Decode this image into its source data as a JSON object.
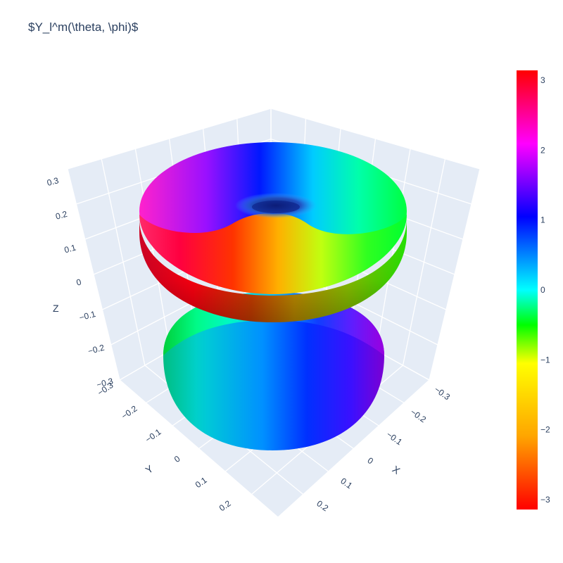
{
  "chart_data": {
    "type": "surface3d",
    "title": "$Y_l^m(\\theta, \\phi)$",
    "surface": {
      "shape": "spherical harmonic |Y| lobes (upper torus ring + lower lobe)",
      "color_by": "phase",
      "colorscale": "hsv"
    },
    "axes": {
      "x": {
        "label": "X",
        "ticks": [
          "−0.3",
          "−0.2",
          "−0.1",
          "0",
          "0.1",
          "0.2"
        ]
      },
      "y": {
        "label": "Y",
        "ticks": [
          "−0.3",
          "−0.2",
          "−0.1",
          "0",
          "0.1",
          "0.2"
        ]
      },
      "z": {
        "label": "Z",
        "ticks": [
          "−0.3",
          "−0.2",
          "−0.1",
          "0",
          "0.1",
          "0.2",
          "0.3"
        ]
      }
    },
    "colorbar": {
      "range": [
        -3.14159,
        3.14159
      ],
      "ticks": [
        "3",
        "2",
        "1",
        "0",
        "−1",
        "−2",
        "−3"
      ],
      "tick_values": [
        3,
        2,
        1,
        0,
        -1,
        -2,
        -3
      ],
      "colors": [
        "#ff0000",
        "#ffa500",
        "#ffff00",
        "#00ff00",
        "#00ffff",
        "#0000ff",
        "#ff00ff",
        "#ff0000"
      ]
    },
    "grid": true,
    "background": "#e5ecf6"
  }
}
